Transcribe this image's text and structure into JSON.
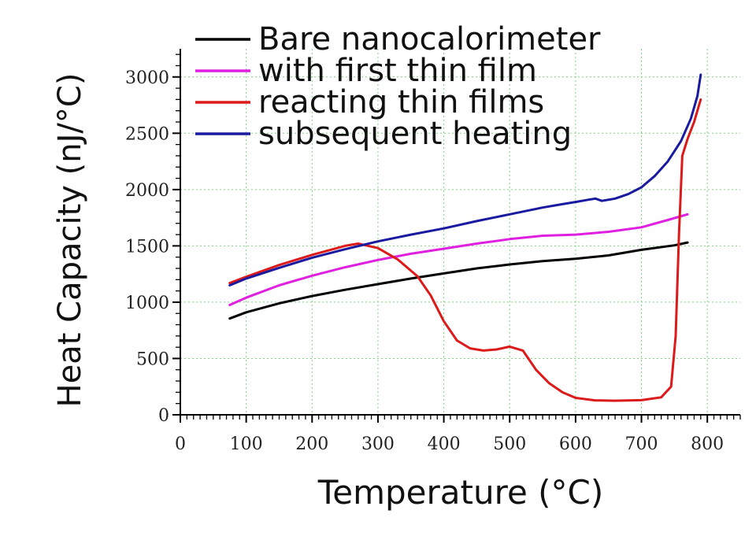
{
  "chart_data": {
    "type": "line",
    "title": "",
    "xlabel": "Temperature (°C)",
    "ylabel": "Heat Capacity (nJ/°C)",
    "xlim": [
      0,
      850
    ],
    "ylim": [
      0,
      3250
    ],
    "xticks": [
      0,
      100,
      200,
      300,
      400,
      500,
      600,
      700,
      800
    ],
    "yticks": [
      0,
      500,
      1000,
      1500,
      2000,
      2500,
      3000
    ],
    "xtick_labels": [
      "0",
      "100",
      "200",
      "300",
      "400",
      "500",
      "600",
      "700",
      "800"
    ],
    "ytick_labels": [
      "0",
      "500",
      "1000",
      "1500",
      "2000",
      "2500",
      "3000"
    ],
    "grid": true,
    "legend_position": "top-left",
    "series": [
      {
        "name": "Bare nanocalorimeter",
        "color": "#000000",
        "x": [
          75,
          100,
          150,
          200,
          250,
          300,
          350,
          400,
          450,
          500,
          550,
          600,
          650,
          700,
          750,
          770
        ],
        "y": [
          855,
          910,
          990,
          1055,
          1110,
          1160,
          1210,
          1255,
          1300,
          1335,
          1365,
          1385,
          1415,
          1465,
          1505,
          1530
        ]
      },
      {
        "name": "with first thin film",
        "color": "#e020e0",
        "x": [
          75,
          100,
          150,
          200,
          250,
          300,
          350,
          400,
          450,
          500,
          550,
          600,
          650,
          700,
          740,
          770
        ],
        "y": [
          975,
          1040,
          1150,
          1235,
          1310,
          1375,
          1430,
          1475,
          1520,
          1560,
          1590,
          1600,
          1625,
          1665,
          1730,
          1780
        ]
      },
      {
        "name": "reacting thin films",
        "color": "#dd1a1a",
        "x": [
          75,
          100,
          150,
          200,
          250,
          270,
          300,
          330,
          360,
          380,
          400,
          420,
          440,
          460,
          480,
          500,
          520,
          540,
          560,
          580,
          600,
          630,
          660,
          700,
          730,
          745,
          752,
          757,
          762,
          770,
          780,
          790
        ],
        "y": [
          1170,
          1225,
          1330,
          1420,
          1500,
          1520,
          1480,
          1380,
          1230,
          1060,
          830,
          660,
          590,
          570,
          580,
          605,
          570,
          400,
          280,
          200,
          150,
          128,
          125,
          130,
          155,
          250,
          700,
          1600,
          2300,
          2450,
          2600,
          2800
        ]
      },
      {
        "name": "subsequent heating",
        "color": "#1a1aa0",
        "x": [
          75,
          100,
          150,
          200,
          250,
          300,
          350,
          400,
          450,
          500,
          550,
          580,
          600,
          620,
          630,
          640,
          660,
          680,
          700,
          720,
          740,
          760,
          775,
          785,
          790
        ],
        "y": [
          1150,
          1210,
          1305,
          1395,
          1470,
          1540,
          1600,
          1655,
          1720,
          1780,
          1840,
          1870,
          1890,
          1910,
          1920,
          1900,
          1920,
          1960,
          2020,
          2120,
          2250,
          2430,
          2630,
          2830,
          3020
        ]
      }
    ]
  }
}
